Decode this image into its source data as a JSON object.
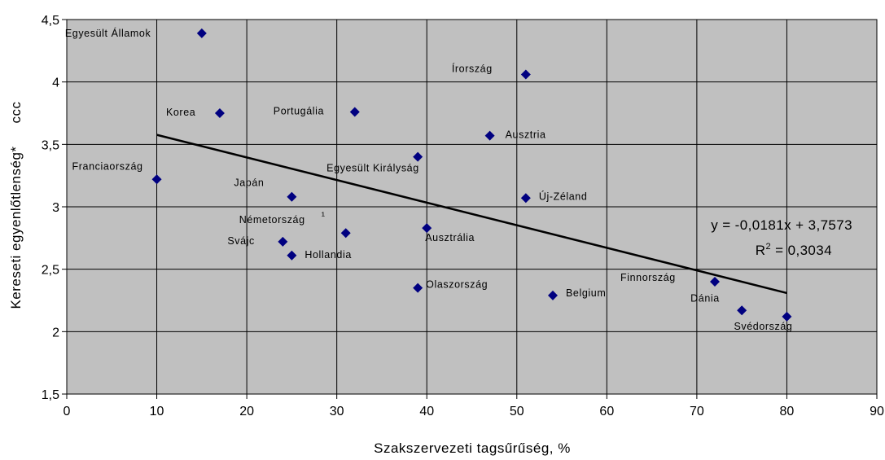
{
  "chart_data": {
    "type": "scatter",
    "xlabel": "Szakszervezeti tagsűrűség, %",
    "ylabel": "Kereseti egyenlőtlenség*",
    "ylabel_suffix": "ccc",
    "xlim": [
      0,
      90
    ],
    "ylim": [
      1.5,
      4.5
    ],
    "x_ticks": [
      0,
      10,
      20,
      30,
      40,
      50,
      60,
      70,
      80,
      90
    ],
    "x_tick_labels": [
      "0",
      "10",
      "20",
      "30",
      "40",
      "50",
      "60",
      "70",
      "80",
      "90"
    ],
    "y_ticks": [
      1.5,
      2,
      2.5,
      3,
      3.5,
      4,
      4.5
    ],
    "y_tick_labels": [
      "1,5",
      "2",
      "2,5",
      "3",
      "3,5",
      "4",
      "4,5"
    ],
    "grid": true,
    "plot_background": "#c0c0c0",
    "marker_color": "#000080",
    "points": [
      {
        "label": "Egyesült Államok",
        "x": 15,
        "y": 4.39
      },
      {
        "label": "Írország",
        "x": 51,
        "y": 4.06
      },
      {
        "label": "Korea",
        "x": 17,
        "y": 3.75
      },
      {
        "label": "Portugália",
        "x": 32,
        "y": 3.76
      },
      {
        "label": "Ausztria",
        "x": 47,
        "y": 3.57
      },
      {
        "label": "Egyesült Királyság",
        "x": 39,
        "y": 3.4
      },
      {
        "label": "Franciaország",
        "x": 10,
        "y": 3.22
      },
      {
        "label": "Japán",
        "x": 25,
        "y": 3.08
      },
      {
        "label": "Új-Zéland",
        "x": 51,
        "y": 3.07
      },
      {
        "label": "Németország",
        "x": 31,
        "y": 2.79
      },
      {
        "label": "Ausztrália",
        "x": 40,
        "y": 2.83
      },
      {
        "label": "Svájc",
        "x": 24,
        "y": 2.72
      },
      {
        "label": "Hollandia",
        "x": 25,
        "y": 2.61
      },
      {
        "label": "Olaszország",
        "x": 39,
        "y": 2.35
      },
      {
        "label": "Belgium",
        "x": 54,
        "y": 2.29
      },
      {
        "label": "Finnország",
        "x": 72,
        "y": 2.4
      },
      {
        "label": "Dánia",
        "x": 75,
        "y": 2.17
      },
      {
        "label": "Svédország",
        "x": 80,
        "y": 2.12
      }
    ],
    "germany_note": "¹",
    "trendline": {
      "slope": -0.0181,
      "intercept": 3.7573,
      "x_range": [
        10,
        80
      ],
      "equation": "y = -0,0181x + 3,7573",
      "r2_prefix": "R",
      "r2_sup": "2",
      "r2_value": " = 0,3034"
    }
  }
}
